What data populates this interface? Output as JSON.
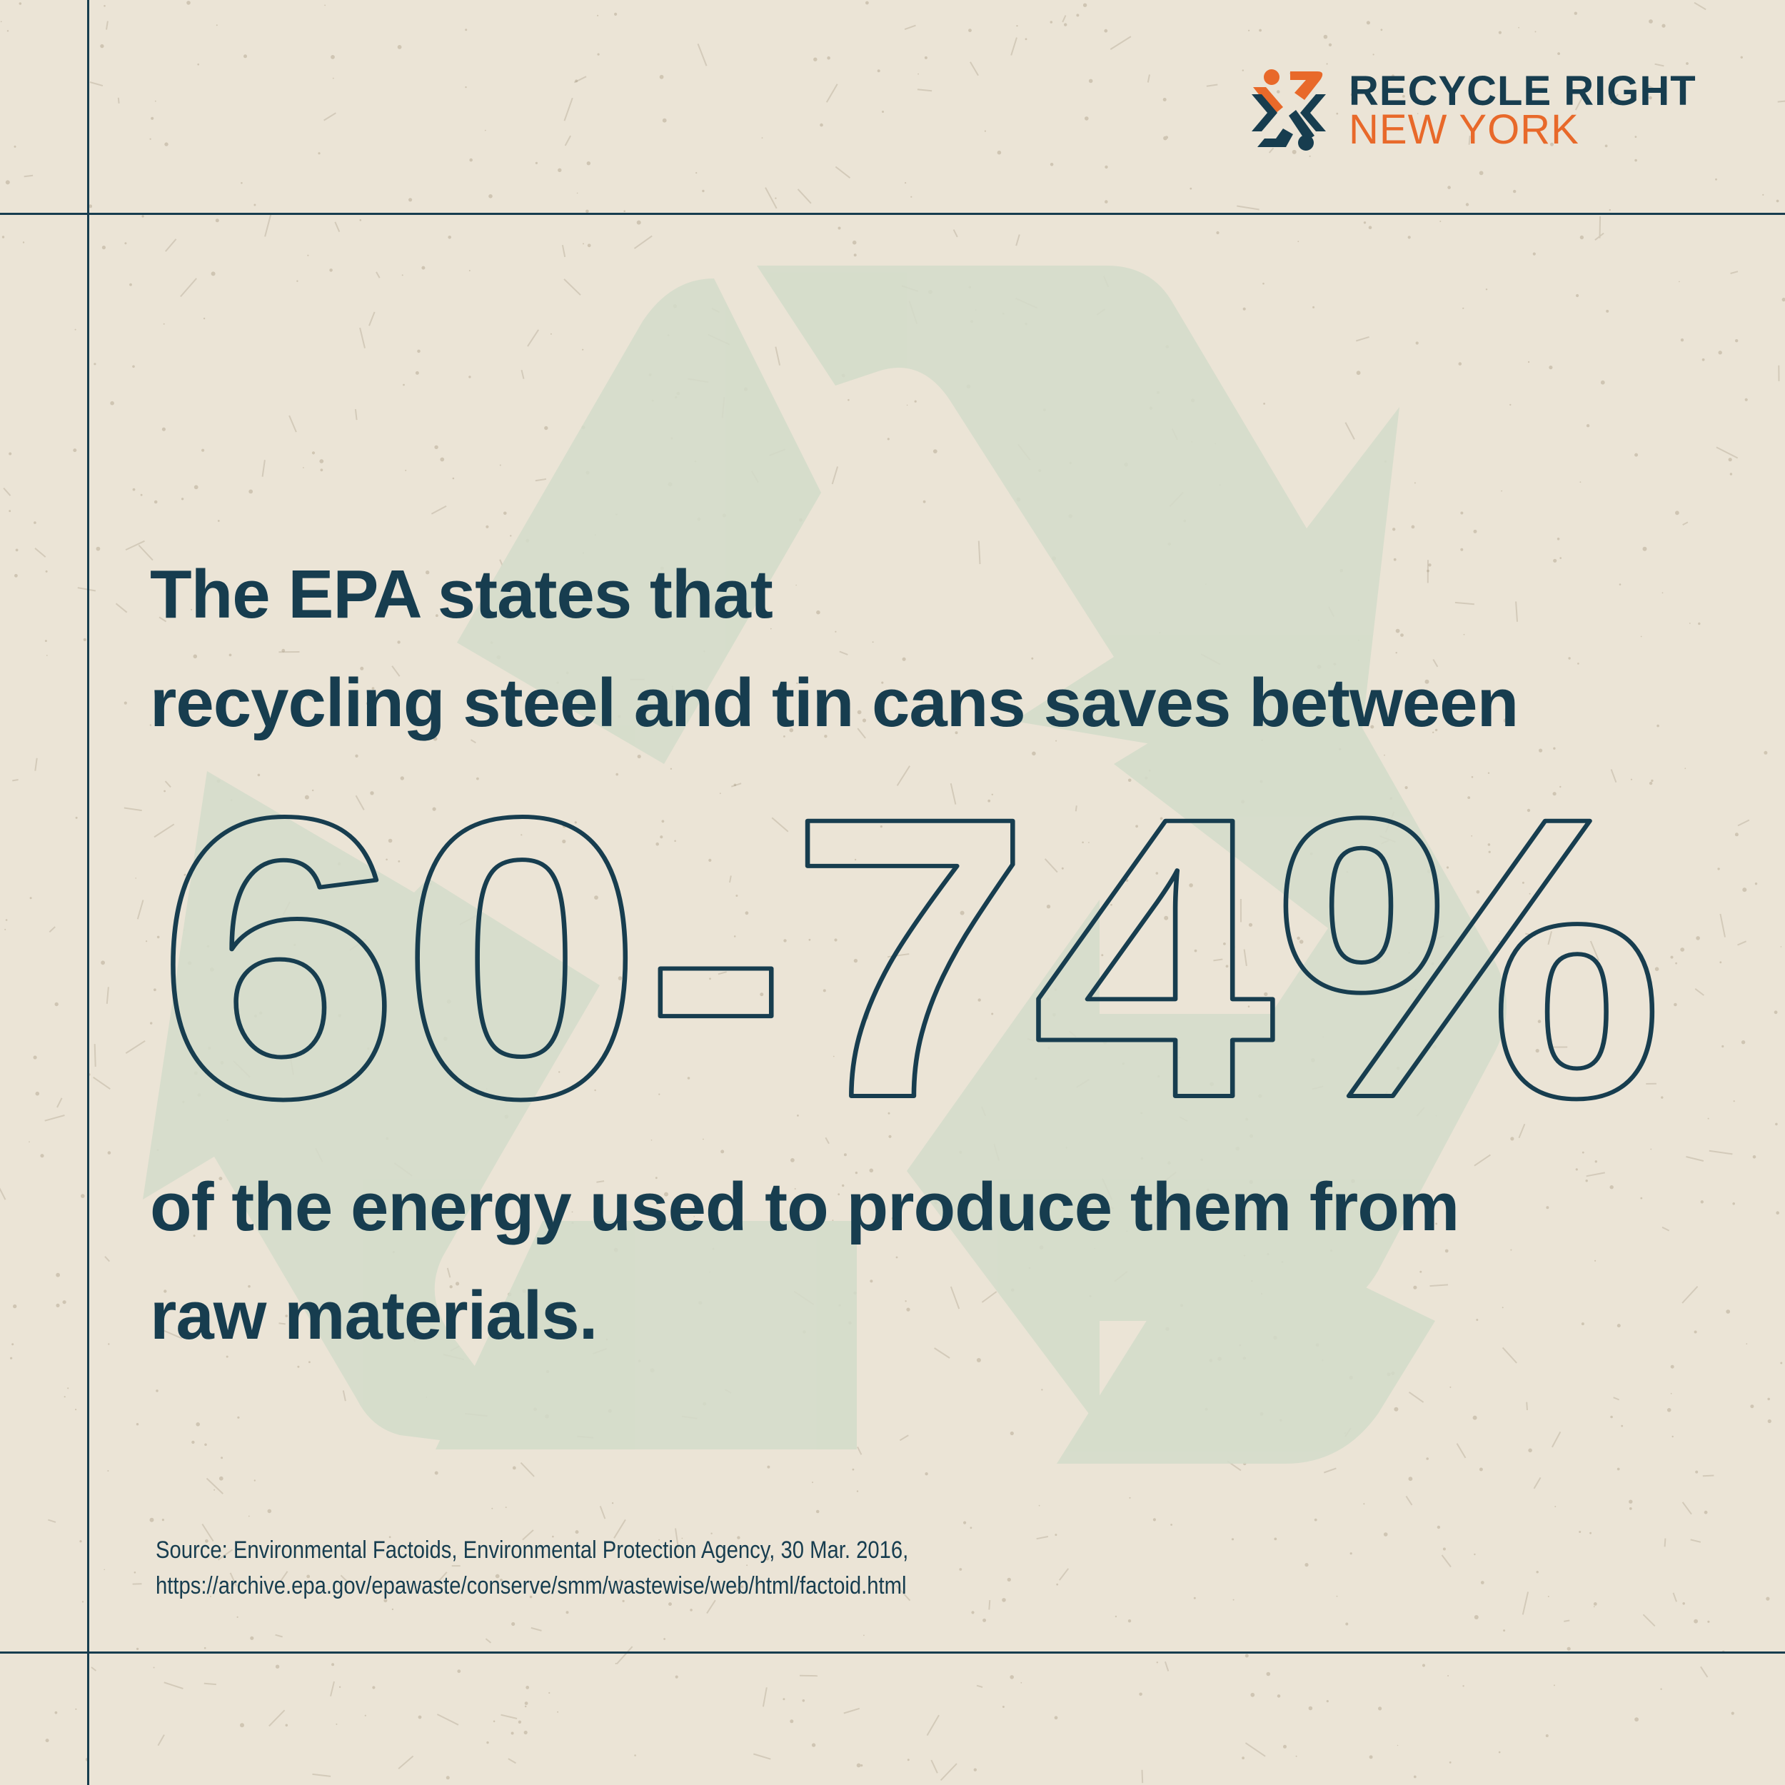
{
  "colors": {
    "background": "#ebe4d6",
    "navy": "#173d4f",
    "orange": "#e8692a",
    "watermark": "#d3dcca"
  },
  "logo": {
    "icon": "recycle-right-logo-icon",
    "line1": "RECYCLE RIGHT",
    "line2": "NEW YORK"
  },
  "headline": {
    "line1": "The EPA states that",
    "line2": "recycling steel and tin cans saves between",
    "stat": "60-74%",
    "line3": "of the energy used to produce them from",
    "line4": "raw materials."
  },
  "source": {
    "line1": "Source: Environmental Factoids, Environmental Protection Agency, 30 Mar. 2016,",
    "line2": "https://archive.epa.gov/epawaste/conserve/smm/wastewise/web/html/factoid.html"
  },
  "background_icon": "recycle-arrows-icon"
}
